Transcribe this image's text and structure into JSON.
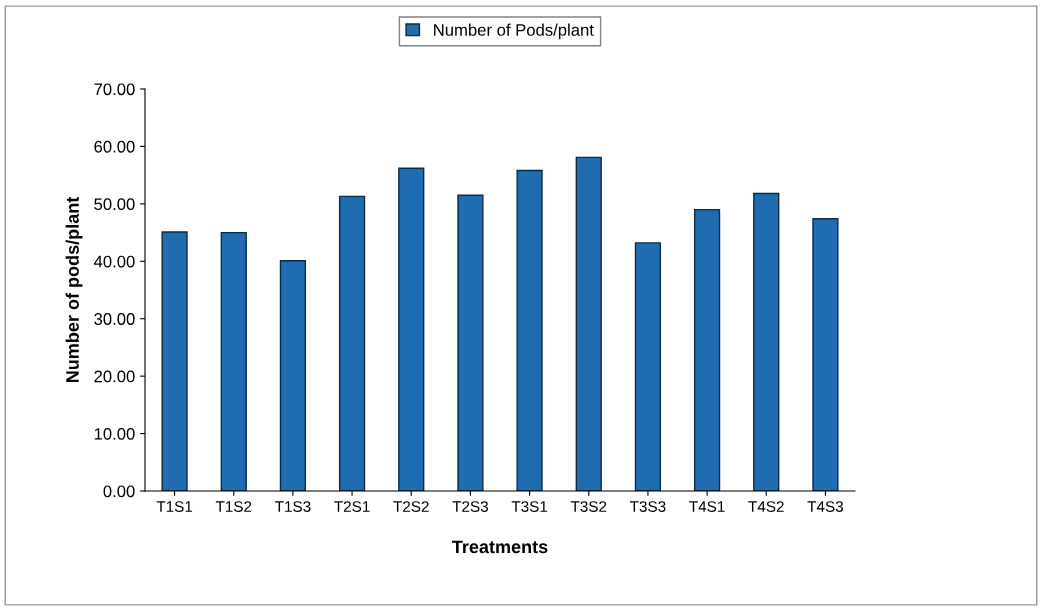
{
  "chart_data": {
    "type": "bar",
    "xlabel": "Treatments",
    "ylabel": "Number of pods/plant",
    "categories": [
      "T1S1",
      "T1S2",
      "T1S3",
      "T2S1",
      "T2S2",
      "T2S3",
      "T3S1",
      "T3S2",
      "T3S3",
      "T4S1",
      "T4S2",
      "T4S3"
    ],
    "series": [
      {
        "name": "Number of Pods/plant",
        "color": "#1f6db0",
        "values": [
          45.1,
          45.0,
          40.1,
          51.3,
          56.2,
          51.5,
          55.8,
          58.1,
          43.2,
          49.0,
          51.8,
          47.4
        ]
      }
    ],
    "ylim": [
      0,
      70
    ],
    "yticks": [
      {
        "value": 0,
        "label": "0.00"
      },
      {
        "value": 10,
        "label": "10.00"
      },
      {
        "value": 20,
        "label": "20.00"
      },
      {
        "value": 30,
        "label": "30.00"
      },
      {
        "value": 40,
        "label": "40.00"
      },
      {
        "value": 50,
        "label": "50.00"
      },
      {
        "value": 60,
        "label": "60.00"
      },
      {
        "value": 70,
        "label": "70.00"
      }
    ],
    "grid": false,
    "legend": "top"
  }
}
